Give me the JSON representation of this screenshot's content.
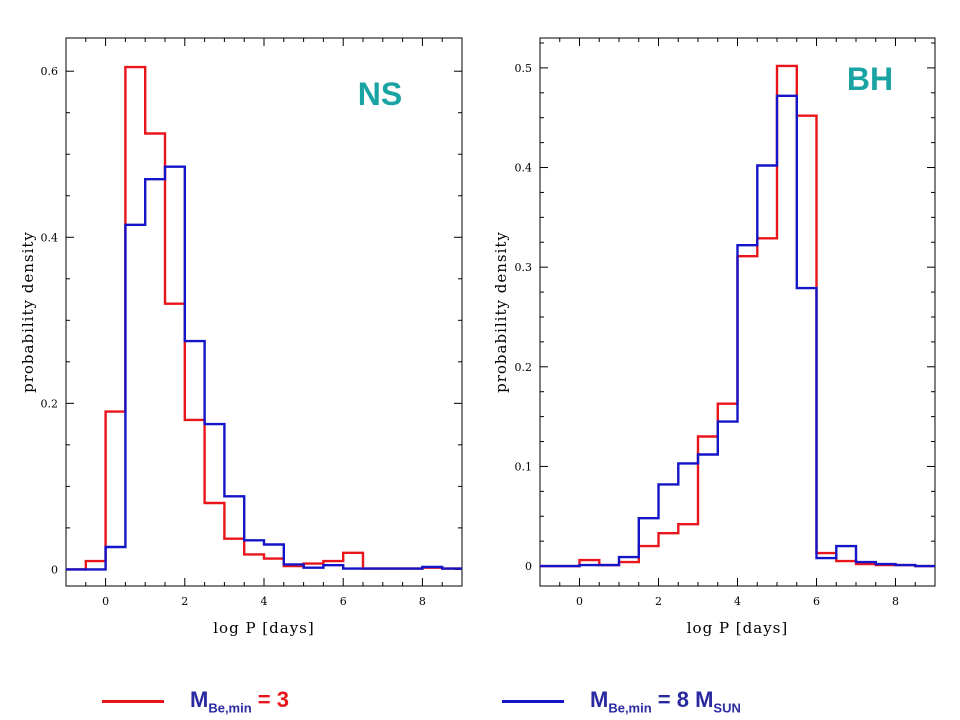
{
  "colors": {
    "red_series": "#e8151b",
    "blue_series": "#1414c8",
    "panel_tag": "#1aa3a3",
    "legend_red_text": "#e8151b",
    "legend_blue_text": "#2a2aa0"
  },
  "chart_data": [
    {
      "type": "histogram",
      "panel_tag": "NS",
      "xlabel": "log P [days]",
      "ylabel": "probability density",
      "xlim": [
        -1,
        9
      ],
      "ylim": [
        -0.02,
        0.64
      ],
      "xticks": [
        0,
        2,
        4,
        6,
        8
      ],
      "yticks": [
        0,
        0.2,
        0.4,
        0.6
      ],
      "ytick_labels": [
        "0",
        "0.2",
        "0.4",
        "0.6"
      ],
      "bin_edges": [
        -1,
        -0.5,
        0,
        0.5,
        1,
        1.5,
        2,
        2.5,
        3,
        3.5,
        4,
        4.5,
        5,
        5.5,
        6,
        6.5,
        7,
        7.5,
        8,
        8.5,
        9
      ],
      "series": [
        {
          "color": "red",
          "values": [
            0,
            0.01,
            0.19,
            0.605,
            0.525,
            0.32,
            0.18,
            0.08,
            0.037,
            0.018,
            0.013,
            0.004,
            0.007,
            0.01,
            0.02,
            0.001,
            0.001,
            0.001,
            0.002,
            0.001
          ]
        },
        {
          "color": "blue",
          "values": [
            0,
            0,
            0.027,
            0.415,
            0.47,
            0.485,
            0.275,
            0.175,
            0.088,
            0.035,
            0.03,
            0.006,
            0.002,
            0.005,
            0.001,
            0.001,
            0.001,
            0.001,
            0.003,
            0.001
          ]
        }
      ]
    },
    {
      "type": "histogram",
      "panel_tag": "BH",
      "xlabel": "log P [days]",
      "ylabel": "probability density",
      "xlim": [
        -1,
        9
      ],
      "ylim": [
        -0.02,
        0.53
      ],
      "xticks": [
        0,
        2,
        4,
        6,
        8
      ],
      "yticks": [
        0,
        0.1,
        0.2,
        0.3,
        0.4,
        0.5
      ],
      "ytick_labels": [
        "0",
        "0.1",
        "0.2",
        "0.3",
        "0.4",
        "0.5"
      ],
      "bin_edges": [
        -1,
        -0.5,
        0,
        0.5,
        1,
        1.5,
        2,
        2.5,
        3,
        3.5,
        4,
        4.5,
        5,
        5.5,
        6,
        6.5,
        7,
        7.5,
        8,
        8.5,
        9
      ],
      "series": [
        {
          "color": "red",
          "values": [
            0,
            0,
            0.006,
            0.001,
            0.004,
            0.02,
            0.033,
            0.042,
            0.13,
            0.163,
            0.311,
            0.329,
            0.502,
            0.452,
            0.013,
            0.005,
            0.002,
            0.001,
            0.001,
            0
          ]
        },
        {
          "color": "blue",
          "values": [
            0,
            0,
            0.001,
            0.001,
            0.009,
            0.048,
            0.082,
            0.103,
            0.112,
            0.145,
            0.322,
            0.402,
            0.472,
            0.279,
            0.008,
            0.02,
            0.004,
            0.002,
            0.001,
            0
          ]
        }
      ]
    }
  ],
  "legend": {
    "item1": {
      "main": "M",
      "sub": "Be,min",
      "rest": " = 3"
    },
    "item2": {
      "main": "M",
      "sub": "Be,min",
      "rest": " = 8 M",
      "sub2": "SUN"
    }
  }
}
